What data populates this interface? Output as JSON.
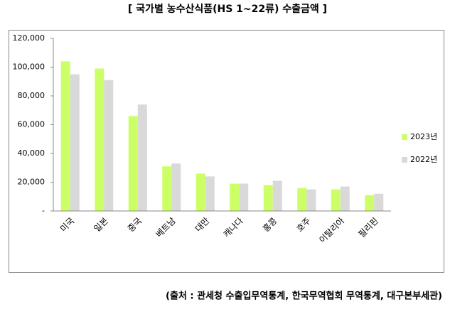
{
  "chart_data": {
    "type": "bar",
    "title": "[ 국가별 농수산식품(HS 1~22류) 수출금액 ]",
    "source": "(출처 : 관세청 수출입무역통계, 한국무역협회 무역통계, 대구본부세관)",
    "categories": [
      "미국",
      "일본",
      "중국",
      "베트남",
      "대만",
      "캐나다",
      "홍콩",
      "호주",
      "이탈리아",
      "필리핀"
    ],
    "series": [
      {
        "name": "2023년",
        "color": "#ccff66",
        "values": [
          104000,
          99000,
          66000,
          31000,
          26000,
          19000,
          18000,
          16000,
          15000,
          11000
        ]
      },
      {
        "name": "2022년",
        "color": "#d9d9d9",
        "values": [
          95000,
          91000,
          74000,
          33000,
          24000,
          19000,
          21000,
          15000,
          17000,
          12000
        ]
      }
    ],
    "ylim": [
      0,
      120000
    ],
    "yticks": [
      {
        "value": 0,
        "label": "-"
      },
      {
        "value": 20000,
        "label": "20,000"
      },
      {
        "value": 40000,
        "label": "40,000"
      },
      {
        "value": 60000,
        "label": "60,000"
      },
      {
        "value": 80000,
        "label": "80,000"
      },
      {
        "value": 100000,
        "label": "100,000"
      },
      {
        "value": 120000,
        "label": "120,000"
      }
    ],
    "grid": false,
    "legend": "right"
  }
}
